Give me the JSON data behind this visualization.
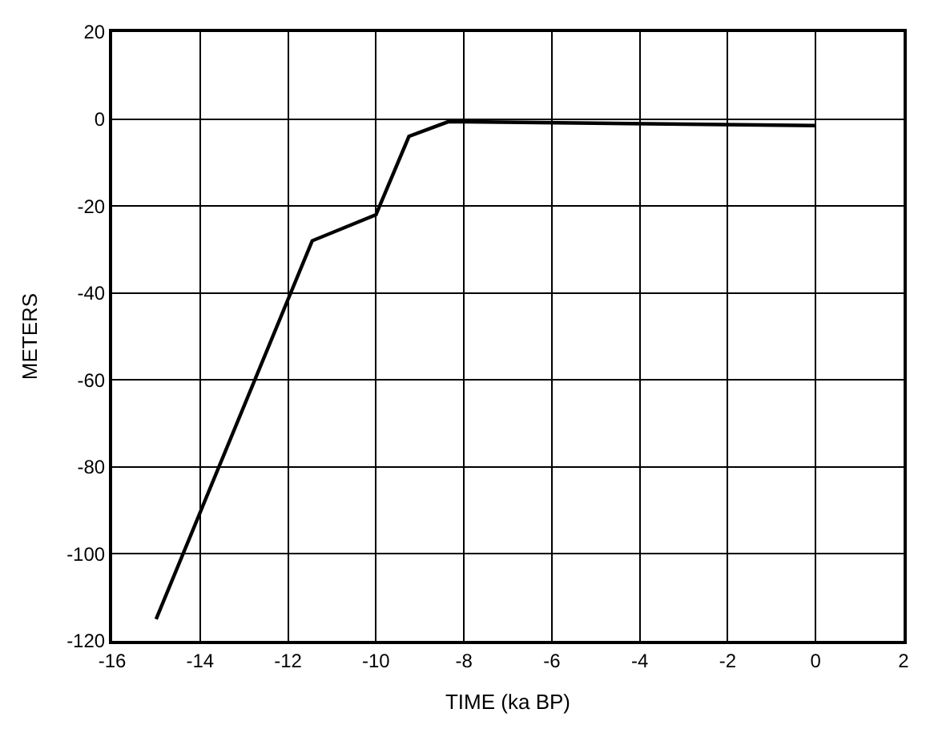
{
  "chart_data": {
    "type": "line",
    "xlabel": "TIME (ka BP)",
    "ylabel": "METERS",
    "x": [
      -15,
      -11.45,
      -10,
      -9.25,
      -8.35,
      0
    ],
    "series": [
      {
        "color": "#000000",
        "values": [
          -115,
          -28,
          -22,
          -4,
          -0.6,
          -1.5
        ]
      }
    ],
    "xlim": [
      -16,
      2
    ],
    "xticks": [
      -16,
      -14,
      -12,
      -10,
      -8,
      -6,
      -4,
      -2,
      0,
      2
    ],
    "ylim": [
      -120,
      20
    ],
    "yticks": [
      -120,
      -100,
      -80,
      -60,
      -40,
      -20,
      0,
      20
    ],
    "grid": true,
    "marker": "none",
    "line_style": "solid"
  }
}
